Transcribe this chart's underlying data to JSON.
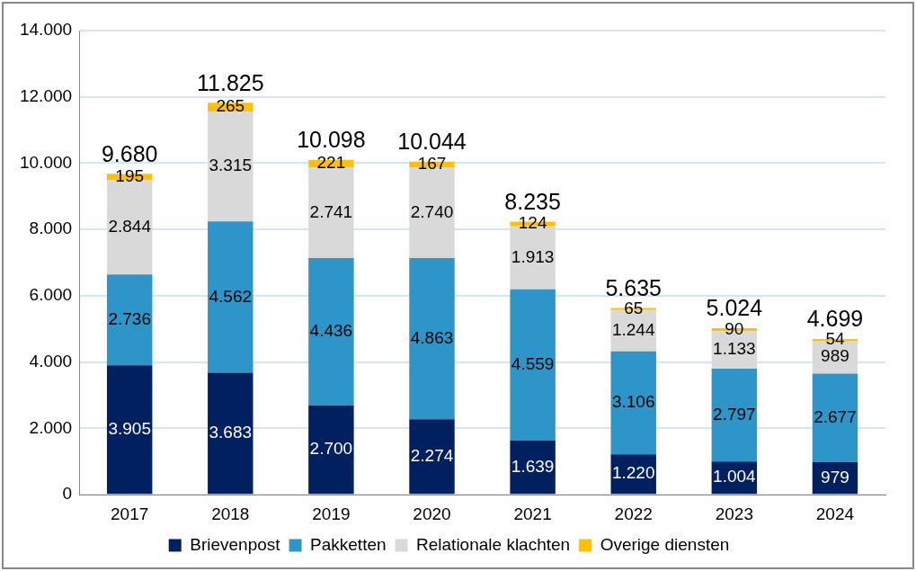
{
  "chart_data": {
    "type": "bar",
    "stacked": true,
    "categories": [
      "2017",
      "2018",
      "2019",
      "2020",
      "2021",
      "2022",
      "2023",
      "2024"
    ],
    "series": [
      {
        "name": "Brievenpost",
        "color": "#002060",
        "values": [
          3905,
          3683,
          2700,
          2274,
          1639,
          1220,
          1004,
          979
        ],
        "value_labels": [
          "3.905",
          "3.683",
          "2.700",
          "2.274",
          "1.639",
          "1.220",
          "1.004",
          "979"
        ]
      },
      {
        "name": "Pakketten",
        "color": "#2e95c8",
        "values": [
          2736,
          4562,
          4436,
          4863,
          4559,
          3106,
          2797,
          2677
        ],
        "value_labels": [
          "2.736",
          "4.562",
          "4.436",
          "4.863",
          "4.559",
          "3.106",
          "2.797",
          "2.677"
        ]
      },
      {
        "name": "Relationale klachten",
        "color": "#d9d9d9",
        "values": [
          2844,
          3315,
          2741,
          2740,
          1913,
          1244,
          1133,
          989
        ],
        "value_labels": [
          "2.844",
          "3.315",
          "2.741",
          "2.740",
          "1.913",
          "1.244",
          "1.133",
          "989"
        ]
      },
      {
        "name": "Overige diensten",
        "color": "#ffc000",
        "values": [
          195,
          265,
          221,
          167,
          124,
          65,
          90,
          54
        ],
        "value_labels": [
          "195",
          "265",
          "221",
          "167",
          "124",
          "65",
          "90",
          "54"
        ]
      }
    ],
    "totals": [
      "9.680",
      "11.825",
      "10.098",
      "10.044",
      "8.235",
      "5.635",
      "5.024",
      "4.699"
    ],
    "ylim": [
      0,
      14000
    ],
    "yticks": [
      {
        "value": 0,
        "label": "0"
      },
      {
        "value": 2000,
        "label": "2.000"
      },
      {
        "value": 4000,
        "label": "4.000"
      },
      {
        "value": 6000,
        "label": "6.000"
      },
      {
        "value": 8000,
        "label": "8.000"
      },
      {
        "value": 10000,
        "label": "10.000"
      },
      {
        "value": 12000,
        "label": "12.000"
      },
      {
        "value": 14000,
        "label": "14.000"
      }
    ],
    "grid": "y",
    "legend": "bottom"
  }
}
